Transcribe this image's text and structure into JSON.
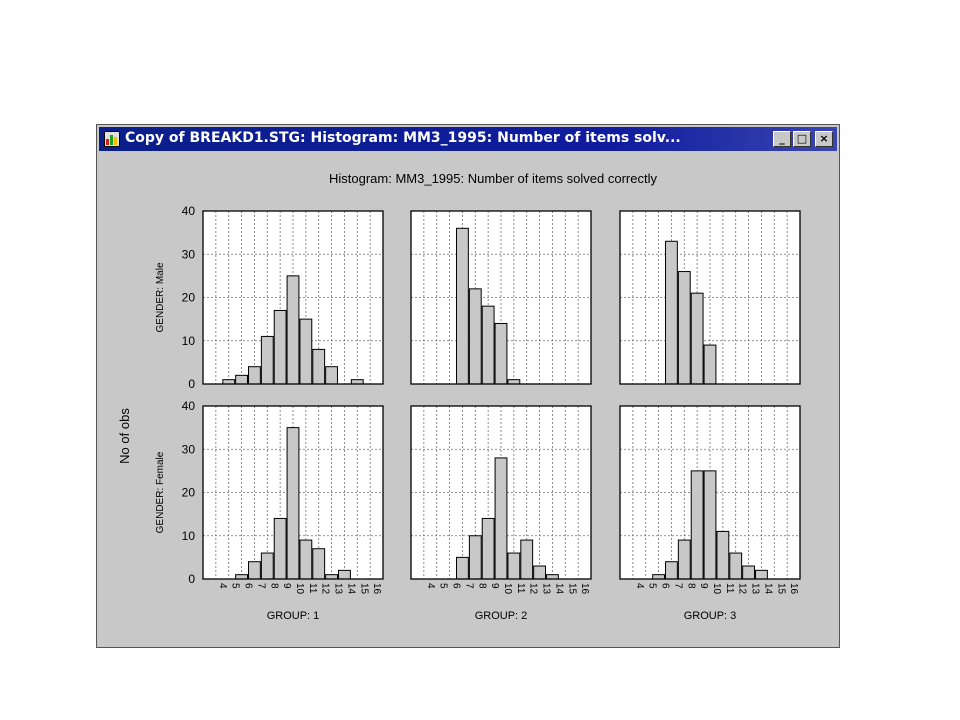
{
  "window": {
    "title": "Copy of BREAKD1.STG: Histogram: MM3_1995: Number of items solv...",
    "min_glyph": "_",
    "max_glyph": "□",
    "close_glyph": "×"
  },
  "chart_data": {
    "type": "bar",
    "title": "Histogram: MM3_1995: Number of items solved correctly",
    "ylabel": "No of obs",
    "ylim": [
      0,
      40
    ],
    "yticks": [
      0,
      10,
      20,
      30,
      40
    ],
    "categories": [
      "4",
      "5",
      "6",
      "7",
      "8",
      "9",
      "10",
      "11",
      "12",
      "13",
      "14",
      "15",
      "16"
    ],
    "columns": [
      "GROUP: 1",
      "GROUP: 2",
      "GROUP: 3"
    ],
    "rows": [
      "GENDER: Male",
      "GENDER: Female"
    ],
    "panels": [
      {
        "row": "GENDER: Male",
        "column": "GROUP: 1",
        "values": [
          0,
          1,
          2,
          4,
          11,
          17,
          25,
          15,
          8,
          4,
          0,
          1,
          0
        ]
      },
      {
        "row": "GENDER: Male",
        "column": "GROUP: 2",
        "values": [
          0,
          0,
          0,
          36,
          22,
          18,
          14,
          1,
          0,
          0,
          0,
          0,
          0
        ]
      },
      {
        "row": "GENDER: Male",
        "column": "GROUP: 3",
        "values": [
          0,
          0,
          0,
          33,
          26,
          21,
          9,
          0,
          0,
          0,
          0,
          0,
          0
        ]
      },
      {
        "row": "GENDER: Female",
        "column": "GROUP: 1",
        "values": [
          0,
          0,
          1,
          4,
          6,
          14,
          35,
          9,
          7,
          1,
          2,
          0,
          0
        ]
      },
      {
        "row": "GENDER: Female",
        "column": "GROUP: 2",
        "values": [
          0,
          0,
          0,
          5,
          10,
          14,
          28,
          6,
          9,
          3,
          1,
          0,
          0
        ]
      },
      {
        "row": "GENDER: Female",
        "column": "GROUP: 3",
        "values": [
          0,
          0,
          1,
          4,
          9,
          25,
          25,
          11,
          6,
          3,
          2,
          0,
          0
        ]
      }
    ],
    "grid": true,
    "legend": "none",
    "bar_fill": "#c8c8c8",
    "bar_stroke": "#000000"
  }
}
